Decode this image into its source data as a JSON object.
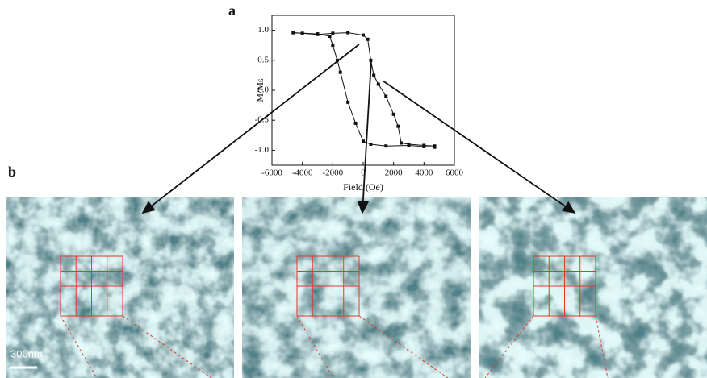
{
  "figure": {
    "panel_a_label": "a",
    "panel_b_label": "b",
    "scale_bar": "300nm"
  },
  "chart_data": {
    "type": "line",
    "x_label": "Field (Oe)",
    "y_label": "M/Ms",
    "xlim": [
      -6000,
      6000
    ],
    "ylim": [
      -1.25,
      1.25
    ],
    "xticks": [
      -6000,
      -4000,
      -2000,
      0,
      2000,
      4000,
      6000
    ],
    "yticks": [
      {
        "value": 1,
        "label": "1.0"
      },
      0.5,
      {
        "value": 0,
        "label": "0.0"
      },
      -0.5,
      {
        "value": -1,
        "label": "-1.0"
      }
    ],
    "series": [
      {
        "color": "#111111",
        "x": [
          -4600,
          -4000,
          -3000,
          -2000,
          -1000,
          0,
          300,
          500,
          700,
          1000,
          1500,
          2000,
          2300,
          2500,
          3000,
          4000,
          4700
        ],
        "values": [
          0.96,
          0.95,
          0.93,
          0.95,
          0.96,
          0.92,
          0.85,
          0.5,
          0.25,
          0.1,
          -0.1,
          -0.4,
          -0.6,
          -0.88,
          -0.9,
          -0.92,
          -0.93
        ]
      },
      {
        "color": "#111111",
        "x": [
          -4600,
          -3000,
          -2200,
          -2000,
          -1700,
          -1500,
          -1000,
          -500,
          0,
          500,
          1500,
          3000,
          4000,
          4700
        ],
        "values": [
          0.96,
          0.94,
          0.9,
          0.75,
          0.5,
          0.3,
          -0.2,
          -0.55,
          -0.85,
          -0.9,
          -0.93,
          -0.92,
          -0.94,
          -0.95
        ]
      }
    ]
  }
}
